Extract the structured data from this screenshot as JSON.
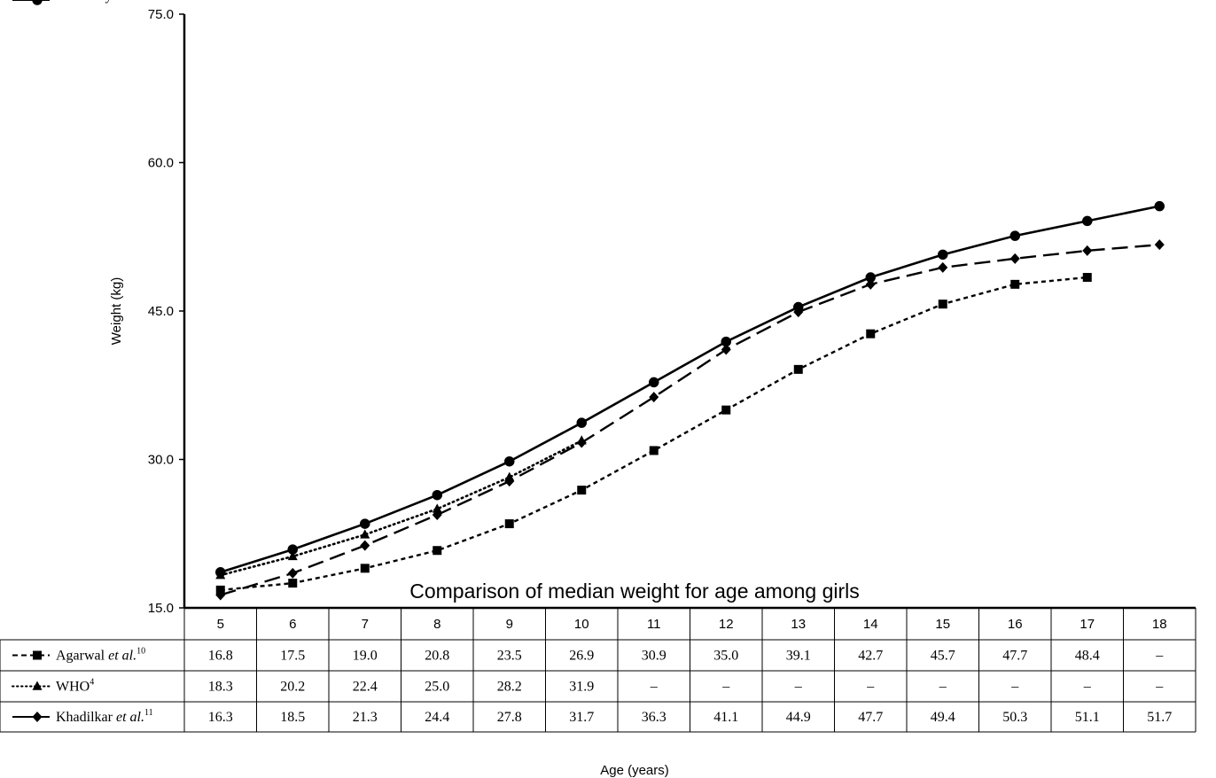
{
  "chart_data": {
    "type": "line",
    "title": "Comparison of median weight for age among girls",
    "xlabel": "Age (years)",
    "ylabel": "Weight (kg)",
    "ylim": [
      15.0,
      75.0
    ],
    "yticks": [
      "15.0",
      "30.0",
      "45.0",
      "60.0",
      "75.0"
    ],
    "x": [
      5,
      6,
      7,
      8,
      9,
      10,
      11,
      12,
      13,
      14,
      15,
      16,
      17,
      18
    ],
    "grid": false,
    "legend": "table rows below chart",
    "series": [
      {
        "name": "Agarwal",
        "name_suffix": "et al.",
        "ref": "10",
        "marker": "square",
        "dash": "short-dash",
        "values": [
          16.8,
          17.5,
          19.0,
          20.8,
          23.5,
          26.9,
          30.9,
          35.0,
          39.1,
          42.7,
          45.7,
          47.7,
          48.4,
          null
        ],
        "labels": [
          "16.8",
          "17.5",
          "19.0",
          "20.8",
          "23.5",
          "26.9",
          "30.9",
          "35.0",
          "39.1",
          "42.7",
          "45.7",
          "47.7",
          "48.4",
          "–"
        ]
      },
      {
        "name": "WHO",
        "name_suffix": "",
        "ref": "4",
        "marker": "triangle",
        "dash": "dotted",
        "values": [
          18.3,
          20.2,
          22.4,
          25.0,
          28.2,
          31.9,
          null,
          null,
          null,
          null,
          null,
          null,
          null,
          null
        ],
        "labels": [
          "18.3",
          "20.2",
          "22.4",
          "25.0",
          "28.2",
          "31.9",
          "–",
          "–",
          "–",
          "–",
          "–",
          "–",
          "–",
          "–"
        ]
      },
      {
        "name": "Khadilkar",
        "name_suffix": "et al.",
        "ref": "11",
        "marker": "diamond",
        "dash": "long-dash",
        "values": [
          16.3,
          18.5,
          21.3,
          24.4,
          27.8,
          31.7,
          36.3,
          41.1,
          44.9,
          47.7,
          49.4,
          50.3,
          51.1,
          51.7
        ],
        "labels": [
          "16.3",
          "18.5",
          "21.3",
          "24.4",
          "27.8",
          "31.7",
          "36.3",
          "41.1",
          "44.9",
          "47.7",
          "49.4",
          "50.3",
          "51.1",
          "51.7"
        ]
      },
      {
        "name": "Our study",
        "name_suffix": "",
        "ref": "",
        "marker": "circle",
        "dash": "solid",
        "values": [
          18.6,
          20.9,
          23.5,
          26.4,
          29.8,
          33.7,
          37.8,
          41.9,
          45.4,
          48.4,
          50.7,
          52.6,
          54.1,
          55.6
        ],
        "labels": [
          "18.6",
          "20.9",
          "23.5",
          "26.4",
          "29.8",
          "33.7",
          "37.8",
          "41.9",
          "45.4",
          "48.4",
          "50.7",
          "52.6",
          "54.1",
          "55.6"
        ]
      }
    ]
  }
}
